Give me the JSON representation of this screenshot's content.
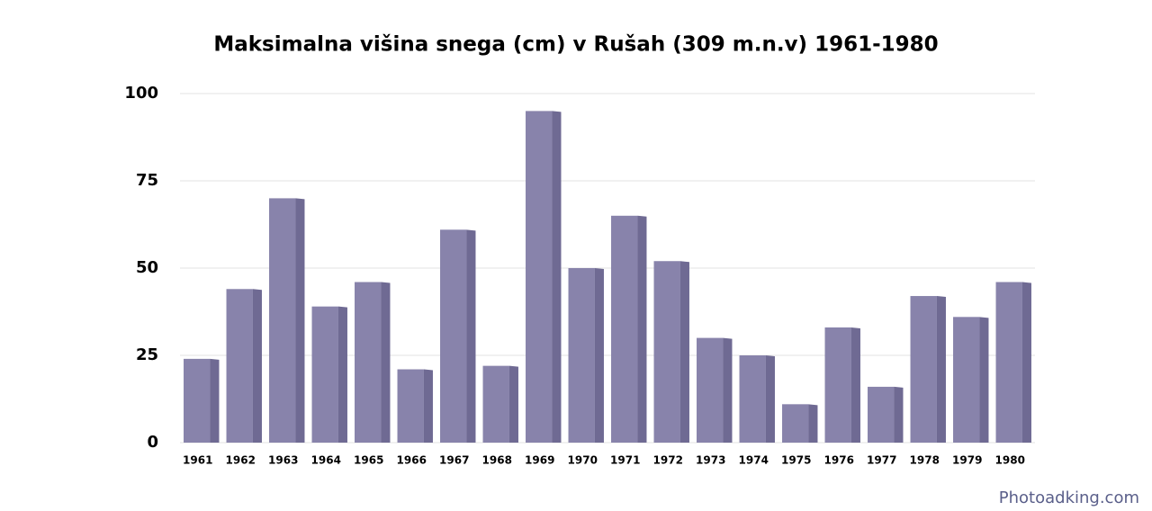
{
  "chart_data": {
    "type": "bar",
    "title": "Maksimalna višina snega (cm) v Rušah (309 m.n.v) 1961-1980",
    "categories": [
      "1961",
      "1962",
      "1963",
      "1964",
      "1965",
      "1966",
      "1967",
      "1968",
      "1969",
      "1970",
      "1971",
      "1972",
      "1973",
      "1974",
      "1975",
      "1976",
      "1977",
      "1978",
      "1979",
      "1980"
    ],
    "values": [
      24,
      44,
      70,
      39,
      46,
      21,
      61,
      22,
      95,
      50,
      65,
      52,
      30,
      25,
      11,
      33,
      16,
      42,
      36,
      46
    ],
    "color": "#8883ab",
    "ylim": [
      0,
      100
    ],
    "yticks": [
      0,
      25,
      50,
      75,
      100
    ],
    "grid": true,
    "watermark": "Photoadking.com"
  }
}
